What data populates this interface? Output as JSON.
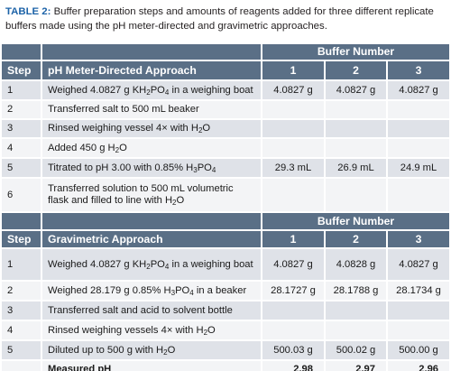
{
  "caption": {
    "label": "TABLE 2:",
    "text": " Buffer preparation steps and amounts of reagents added for three different replicate buffers made using the pH meter-directed and gravimetric approaches."
  },
  "section1": {
    "buffer_number_label": "Buffer Number",
    "step_label": "Step",
    "approach_label": "pH Meter-Directed Approach",
    "cols": [
      "1",
      "2",
      "3"
    ],
    "rows": [
      {
        "step": "1",
        "desc": [
          "Weighed 4.0827 g KH",
          "2",
          "PO",
          "4",
          " in a weighing boat"
        ],
        "v": [
          "4.0827 g",
          "4.0827 g",
          "4.0827 g"
        ]
      },
      {
        "step": "2",
        "desc": [
          "Transferred salt to 500 mL beaker"
        ],
        "v": [
          "",
          "",
          ""
        ]
      },
      {
        "step": "3",
        "desc": [
          "Rinsed weighing vessel 4× with H",
          "2",
          "O"
        ],
        "v": [
          "",
          "",
          ""
        ]
      },
      {
        "step": "4",
        "desc": [
          "Added 450 g H",
          "2",
          "O"
        ],
        "v": [
          "",
          "",
          ""
        ]
      },
      {
        "step": "5",
        "desc": [
          "Titrated to pH 3.00 with 0.85% H",
          "3",
          "PO",
          "4"
        ],
        "v": [
          "29.3 mL",
          "26.9 mL",
          "24.9 mL"
        ]
      },
      {
        "step": "6",
        "desc": [
          "Transferred solution to 500 mL volumetric flask and filled to line with H",
          "2",
          "O"
        ],
        "v": [
          "",
          "",
          ""
        ]
      }
    ]
  },
  "section2": {
    "buffer_number_label": "Buffer Number",
    "step_label": "Step",
    "approach_label": "Gravimetric Approach",
    "cols": [
      "1",
      "2",
      "3"
    ],
    "rows": [
      {
        "step": "1",
        "desc": [
          "Weighed 4.0827 g KH",
          "2",
          "PO",
          "4",
          " in a weighing boat"
        ],
        "v": [
          "4.0827 g",
          "4.0828 g",
          "4.0827 g"
        ]
      },
      {
        "step": "2",
        "desc": [
          "Weighed 28.179 g 0.85% H",
          "3",
          "PO",
          "4",
          " in a beaker"
        ],
        "v": [
          "28.1727 g",
          "28.1788 g",
          "28.1734 g"
        ]
      },
      {
        "step": "3",
        "desc": [
          "Transferred salt and acid to solvent bottle"
        ],
        "v": [
          "",
          "",
          ""
        ]
      },
      {
        "step": "4",
        "desc": [
          "Rinsed weighing vessels 4× with H",
          "2",
          "O"
        ],
        "v": [
          "",
          "",
          ""
        ]
      },
      {
        "step": "5",
        "desc": [
          "Diluted up to 500 g with H",
          "2",
          "O"
        ],
        "v": [
          "500.03 g",
          "500.02 g",
          "500.00 g"
        ]
      }
    ],
    "measured_label": "Measured pH",
    "measured": [
      "2.98",
      "2.97",
      "2.96"
    ]
  }
}
